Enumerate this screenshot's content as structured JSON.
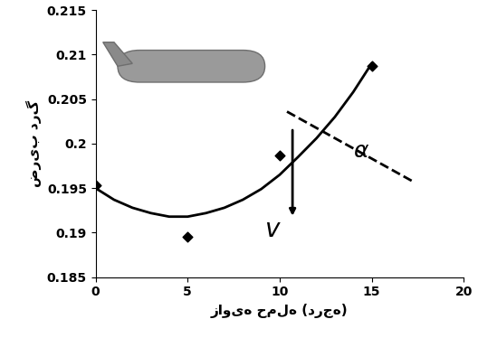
{
  "chart_data": {
    "type": "scatter",
    "x_label": "زاویه حمله (درجه)",
    "y_label": "ضریب درگ",
    "annotations": [
      "α",
      "v"
    ],
    "series": [
      {
        "type": "scatter",
        "marker": "diamond",
        "color": "#000000",
        "x": [
          0,
          5,
          10,
          15
        ],
        "values": [
          0.1953,
          0.1895,
          0.1987,
          0.2087
        ]
      },
      {
        "type": "line",
        "line_style": "solid",
        "color": "#000000",
        "x": [
          0,
          1,
          2,
          3,
          4,
          5,
          6,
          7,
          8,
          9,
          10,
          11,
          12,
          13,
          14,
          15
        ],
        "values": [
          0.195,
          0.1937,
          0.1928,
          0.1922,
          0.1918,
          0.1918,
          0.1922,
          0.1928,
          0.1937,
          0.1949,
          0.1965,
          0.1985,
          0.2006,
          0.203,
          0.2058,
          0.209
        ]
      }
    ],
    "xlim": [
      0,
      20
    ],
    "xticks": [
      0,
      5,
      10,
      15,
      20
    ],
    "ylim": [
      0.185,
      0.215
    ],
    "yticks": [
      0.185,
      0.19,
      0.195,
      0.2,
      0.205,
      0.21,
      0.215
    ],
    "grid": false
  }
}
